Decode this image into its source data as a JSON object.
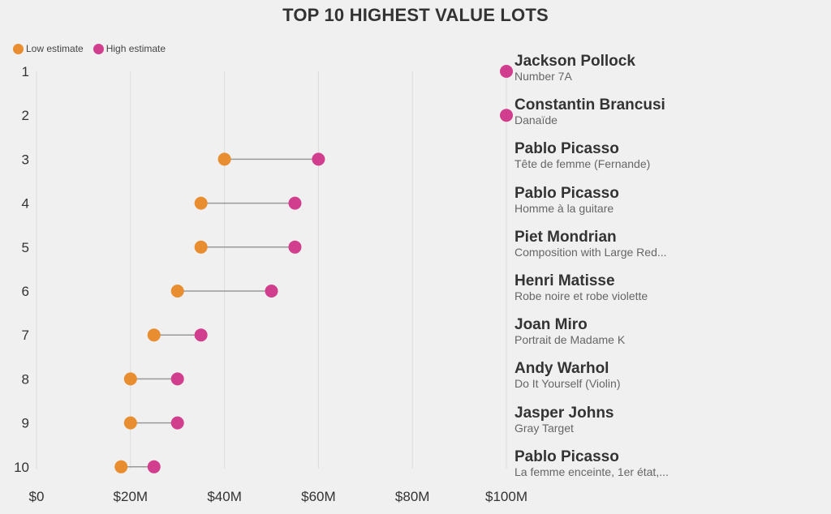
{
  "colors": {
    "low": "#e88e30",
    "high": "#d23e8e",
    "connector": "#999999",
    "grid": "#dcdcdc",
    "text": "#333333"
  },
  "chart_data": {
    "type": "dumbbell",
    "title": "TOP 10 HIGHEST VALUE LOTS",
    "legend": {
      "position": "top-left",
      "entries": [
        "Low estimate",
        "High estimate"
      ]
    },
    "xlabel": "",
    "ylabel": "",
    "xlim": [
      0,
      100
    ],
    "x_unit": "$M",
    "x_ticks": [
      "$0",
      "$20M",
      "$40M",
      "$60M",
      "$80M",
      "$100M"
    ],
    "x_tick_values": [
      0,
      20,
      40,
      60,
      80,
      100
    ],
    "grid": "vertical",
    "rows": [
      {
        "rank": "1",
        "artist": "Jackson Pollock",
        "work": "Number 7A",
        "low": null,
        "high": 100
      },
      {
        "rank": "2",
        "artist": "Constantin Brancusi",
        "work": "Danaïde",
        "low": null,
        "high": 100
      },
      {
        "rank": "3",
        "artist": "Pablo Picasso",
        "work": "Tête de femme (Fernande)",
        "low": 40,
        "high": 60
      },
      {
        "rank": "4",
        "artist": "Pablo Picasso",
        "work": "Homme à la guitare",
        "low": 35,
        "high": 55
      },
      {
        "rank": "5",
        "artist": "Piet Mondrian",
        "work": "Composition with Large Red...",
        "low": 35,
        "high": 55
      },
      {
        "rank": "6",
        "artist": "Henri Matisse",
        "work": "Robe noire et robe violette",
        "low": 30,
        "high": 50
      },
      {
        "rank": "7",
        "artist": "Joan Miro",
        "work": "Portrait de Madame K",
        "low": 25,
        "high": 35
      },
      {
        "rank": "8",
        "artist": "Andy Warhol",
        "work": "Do It Yourself (Violin)",
        "low": 20,
        "high": 30
      },
      {
        "rank": "9",
        "artist": "Jasper Johns",
        "work": "Gray Target",
        "low": 20,
        "high": 30
      },
      {
        "rank": "10",
        "artist": "Pablo Picasso",
        "work": "La femme enceinte, 1er état,...",
        "low": 18,
        "high": 25
      }
    ]
  }
}
